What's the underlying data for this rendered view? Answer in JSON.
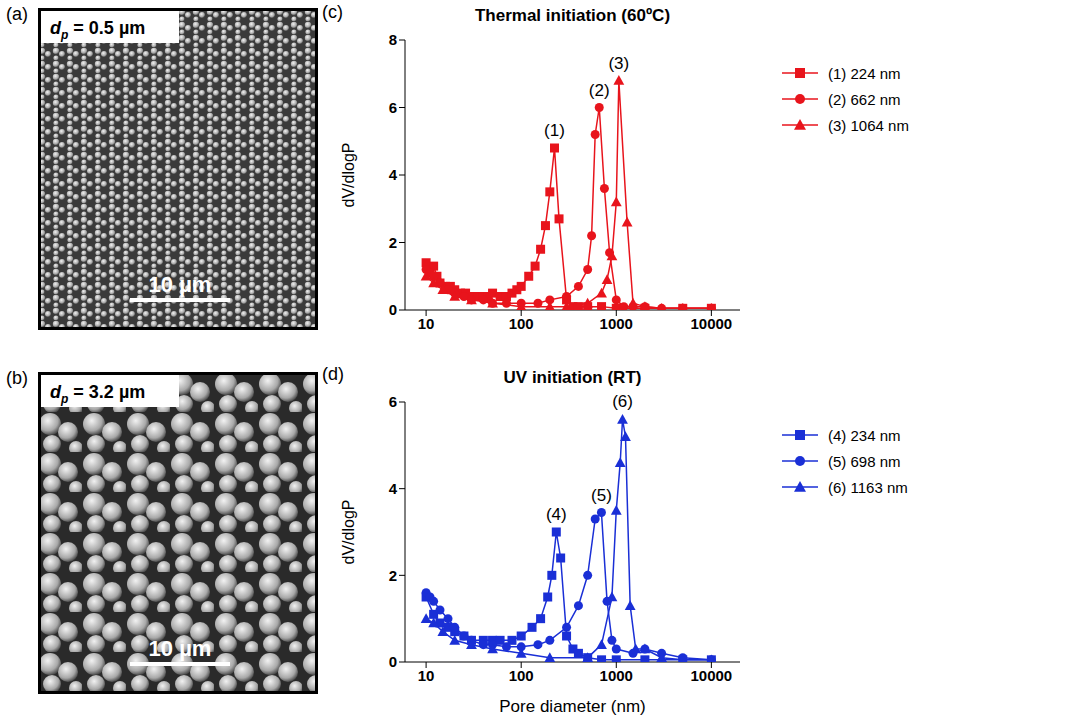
{
  "images": [
    {
      "panel": "(a)",
      "label_symbol": "d",
      "label_subscript": "p",
      "label_value": "= 0.5 µm",
      "scale_bar": "10 µm"
    },
    {
      "panel": "(b)",
      "label_symbol": "d",
      "label_subscript": "p",
      "label_value": "= 3.2 µm",
      "scale_bar": "10 µm"
    }
  ],
  "chart_data": [
    {
      "type": "line",
      "panel": "(c)",
      "title": "Thermal initiation (60ºC)",
      "ylabel": "dV/dlogP",
      "log": "x",
      "xlim": [
        6,
        20000
      ],
      "xticks": [
        10,
        100,
        1000,
        10000
      ],
      "ylim": [
        0,
        8
      ],
      "yticks": [
        0,
        2,
        4,
        6,
        8
      ],
      "legend": "right",
      "series": [
        {
          "name": "(1) 224 nm",
          "annotation": "(1)",
          "color": "#e8141c",
          "marker": "square",
          "x": [
            10,
            11,
            12,
            13,
            14,
            16,
            18,
            20,
            23,
            26,
            30,
            35,
            40,
            45,
            50,
            60,
            70,
            80,
            90,
            100,
            120,
            140,
            160,
            180,
            200,
            224,
            250,
            300,
            350,
            400,
            500,
            700,
            1000,
            2000,
            5000,
            10000
          ],
          "values": [
            1.4,
            1.2,
            1.3,
            1.0,
            0.8,
            0.7,
            0.7,
            0.6,
            0.5,
            0.5,
            0.4,
            0.4,
            0.4,
            0.4,
            0.5,
            0.4,
            0.4,
            0.5,
            0.6,
            0.7,
            1.0,
            1.3,
            1.8,
            2.5,
            3.5,
            4.8,
            2.7,
            0.3,
            0.1,
            0.1,
            0.1,
            0.1,
            0.05,
            0.05,
            0.05,
            0.05
          ]
        },
        {
          "name": "(2) 662 nm",
          "annotation": "(2)",
          "color": "#e8141c",
          "marker": "circle",
          "x": [
            10,
            11,
            12,
            14,
            17,
            20,
            25,
            30,
            40,
            50,
            70,
            100,
            150,
            200,
            300,
            400,
            500,
            550,
            600,
            662,
            750,
            850,
            1000,
            1200,
            1500,
            2000,
            3000,
            5000,
            10000
          ],
          "values": [
            1.2,
            1.1,
            1.0,
            0.8,
            0.6,
            0.5,
            0.4,
            0.3,
            0.3,
            0.2,
            0.2,
            0.2,
            0.2,
            0.3,
            0.4,
            0.7,
            1.2,
            2.2,
            5.2,
            6.0,
            3.6,
            1.7,
            0.3,
            0.1,
            0.1,
            0.1,
            0.05,
            0.05,
            0.05
          ]
        },
        {
          "name": "(3) 1064 nm",
          "annotation": "(3)",
          "color": "#e8141c",
          "marker": "triangle",
          "x": [
            10,
            12,
            15,
            20,
            30,
            50,
            100,
            200,
            300,
            500,
            700,
            800,
            900,
            1000,
            1064,
            1300,
            1500,
            2000,
            3000,
            5000,
            10000
          ],
          "values": [
            1.0,
            0.8,
            0.6,
            0.4,
            0.3,
            0.2,
            0.1,
            0.1,
            0.1,
            0.2,
            0.5,
            0.9,
            1.6,
            3.2,
            6.8,
            2.6,
            0.2,
            0.1,
            0.05,
            0.05,
            0.05
          ]
        }
      ]
    },
    {
      "type": "line",
      "panel": "(d)",
      "title": "UV initiation (RT)",
      "xlabel": "Pore diameter (nm)",
      "ylabel": "dV/dlogP",
      "log": "x",
      "xlim": [
        6,
        20000
      ],
      "xticks": [
        10,
        100,
        1000,
        10000
      ],
      "ylim": [
        0,
        6
      ],
      "yticks": [
        0,
        2,
        4,
        6
      ],
      "legend": "right",
      "series": [
        {
          "name": "(4) 234 nm",
          "annotation": "(4)",
          "color": "#1a2fd6",
          "marker": "square",
          "x": [
            10,
            12,
            14,
            17,
            20,
            25,
            30,
            40,
            50,
            60,
            80,
            100,
            130,
            160,
            190,
            210,
            234,
            260,
            300,
            350,
            400,
            500,
            700,
            1000,
            2000,
            5000,
            10000
          ],
          "values": [
            1.5,
            1.1,
            0.9,
            0.8,
            0.7,
            0.6,
            0.5,
            0.5,
            0.5,
            0.5,
            0.5,
            0.6,
            0.8,
            1.0,
            1.5,
            2.0,
            3.0,
            2.4,
            0.6,
            0.3,
            0.2,
            0.1,
            0.05,
            0.05,
            0.05,
            0.05,
            0.05
          ]
        },
        {
          "name": "(5) 698 nm",
          "annotation": "(5)",
          "color": "#1a2fd6",
          "marker": "circle",
          "x": [
            10,
            11,
            12,
            14,
            17,
            20,
            25,
            30,
            40,
            50,
            70,
            100,
            150,
            200,
            300,
            400,
            500,
            600,
            698,
            800,
            900,
            1000,
            1500,
            2000,
            3000,
            5000,
            10000
          ],
          "values": [
            1.6,
            1.5,
            1.4,
            1.2,
            1.0,
            0.8,
            0.6,
            0.5,
            0.4,
            0.4,
            0.35,
            0.35,
            0.4,
            0.5,
            0.8,
            1.3,
            2.0,
            3.3,
            3.45,
            1.4,
            0.5,
            0.3,
            0.2,
            0.3,
            0.2,
            0.1,
            0.05
          ]
        },
        {
          "name": "(6) 1163 nm",
          "annotation": "(6)",
          "color": "#1a2fd6",
          "marker": "triangle",
          "x": [
            10,
            12,
            15,
            20,
            30,
            50,
            100,
            200,
            500,
            700,
            900,
            1000,
            1100,
            1163,
            1250,
            1400,
            1600,
            2000,
            3000,
            5000,
            10000
          ],
          "values": [
            1.0,
            0.9,
            0.7,
            0.5,
            0.4,
            0.3,
            0.2,
            0.1,
            0.1,
            0.4,
            1.5,
            3.5,
            4.6,
            5.6,
            5.2,
            1.3,
            0.3,
            0.3,
            0.1,
            0.05,
            0.05
          ]
        }
      ]
    }
  ]
}
